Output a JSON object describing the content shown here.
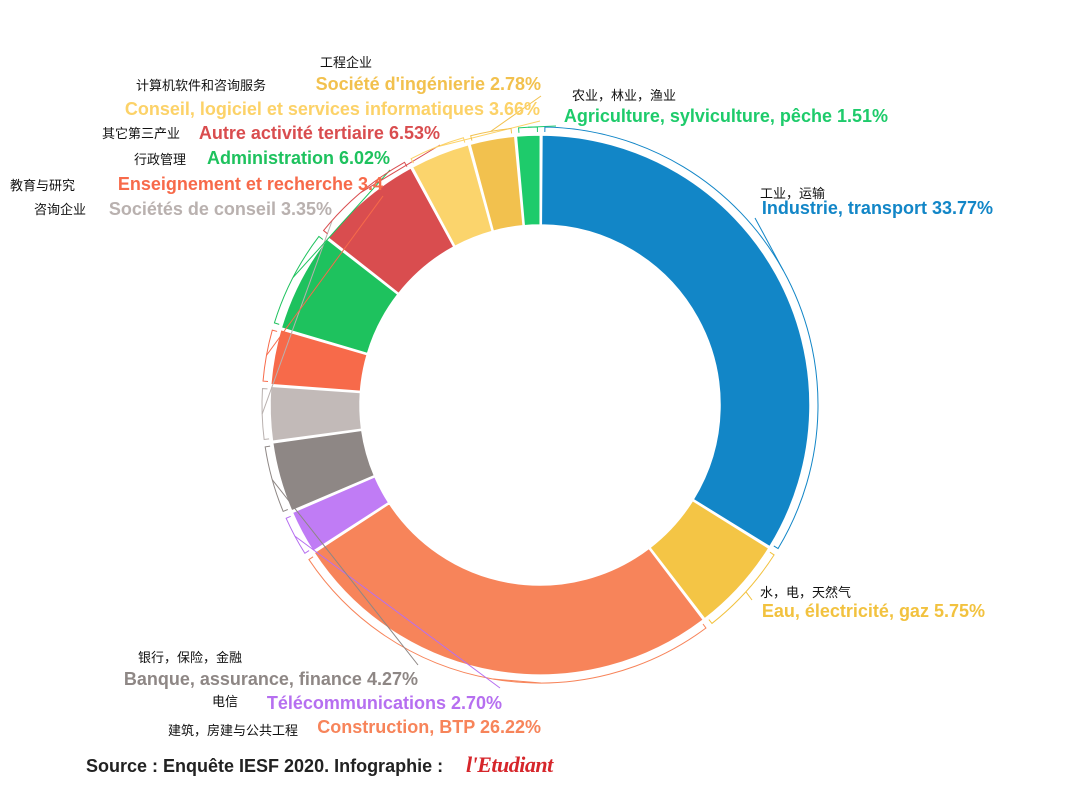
{
  "chart_data": {
    "type": "pie",
    "donut": true,
    "slices": [
      {
        "label_fr": "Agriculture, sylviculture, pêche 1.51%",
        "label_zh": "农业，林业，渔业",
        "value": 1.51,
        "color": "#1ecb6b",
        "label_color": "#1ecb6b"
      },
      {
        "label_fr": "Industrie, transport 33.77%",
        "label_zh": "工业，运输",
        "value": 33.77,
        "color": "#1286c7",
        "label_color": "#1286c7"
      },
      {
        "label_fr": "Eau, électricité, gaz 5.75%",
        "label_zh": "水，电，天然气",
        "value": 5.75,
        "color": "#f4c545",
        "label_color": "#f2c23f"
      },
      {
        "label_fr": "Construction, BTP 26.22%",
        "label_zh": "建筑，房建与公共工程",
        "value": 26.22,
        "color": "#f7845a",
        "label_color": "#f7845a"
      },
      {
        "label_fr": "Télécommunications 2.70%",
        "label_zh": "电信",
        "value": 2.7,
        "color": "#c07cf5",
        "label_color": "#b66ff0"
      },
      {
        "label_fr": "Banque, assurance, finance 4.27%",
        "label_zh": "银行，保险，金融",
        "value": 4.27,
        "color": "#8e8785",
        "label_color": "#8e8785"
      },
      {
        "label_fr": "Sociétés de conseil 3.35%",
        "label_zh": "咨询企业",
        "value": 3.35,
        "color": "#c2bab8",
        "label_color": "#b9b1af"
      },
      {
        "label_fr": "Enseignement et recherche 3.4",
        "label_zh": "教育与研究",
        "value": 3.4,
        "color": "#f76a4a",
        "label_color": "#f76a4a"
      },
      {
        "label_fr": "Administration 6.02%",
        "label_zh": "行政管理",
        "value": 6.02,
        "color": "#1ec25e",
        "label_color": "#1ec25e"
      },
      {
        "label_fr": "Autre activité tertiaire 6.53%",
        "label_zh": "其它第三产业",
        "value": 6.53,
        "color": "#d94d4f",
        "label_color": "#d94d4f"
      },
      {
        "label_fr": "Conseil, logiciel et services informatiques 3.66%",
        "label_zh": "计算机软件和咨询服务",
        "value": 3.66,
        "color": "#fbd46c",
        "label_color": "#fcd268"
      },
      {
        "label_fr": "Société d'ingénierie 2.78%",
        "label_zh": "工程企业",
        "value": 2.78,
        "color": "#f2c14e",
        "label_color": "#f2c14e"
      }
    ]
  },
  "source": {
    "text": "Source : Enquête IESF 2020. Infographie :",
    "logo_text": "l'Etudiant",
    "logo_color": "#d6262b"
  }
}
